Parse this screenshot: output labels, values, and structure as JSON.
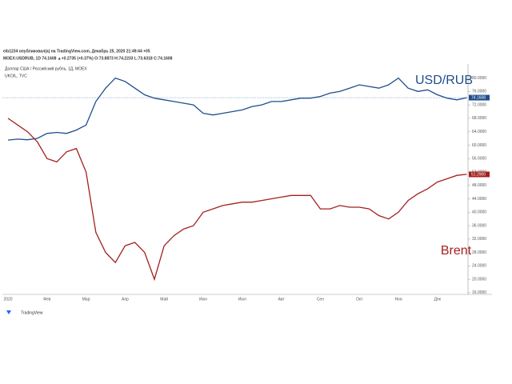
{
  "header": {
    "publisher": "eib1234 опубликовал(а) на TradingView.com, Декабрь 25, 2020 21:49:44 +05",
    "quote": "MOEX:USDRUB, 1D 74.1608 ▲+0.2735 (+0.37%) O:73.8873 H:74.2233 L:73.6318 C:74.1608",
    "symbol": "Доллар США / Российский рубль, 1Д, MOEX",
    "overlay": "UKOIL, TVC"
  },
  "footer": "TradingView",
  "chart_data": {
    "type": "line",
    "categories": [
      "2020",
      null,
      null,
      null,
      "Фев",
      null,
      null,
      null,
      "Мар",
      null,
      null,
      null,
      "Апр",
      null,
      null,
      null,
      "Май",
      null,
      null,
      null,
      "Июн",
      null,
      null,
      null,
      "Июл",
      null,
      null,
      null,
      "Авг",
      null,
      null,
      null,
      "Сен",
      null,
      null,
      null,
      "Окт",
      null,
      null,
      null,
      "Ноя",
      null,
      null,
      null,
      "Дек",
      null,
      null,
      null
    ],
    "series": [
      {
        "name": "USD/RUB",
        "color": "#1f4e8c",
        "values": [
          61.5,
          61.8,
          61.6,
          62,
          63.5,
          63.8,
          63.5,
          64.5,
          66,
          73,
          77,
          80,
          79,
          77,
          75,
          74,
          73.5,
          73,
          72.5,
          72,
          69.5,
          69,
          69.5,
          70,
          70.5,
          71.5,
          72,
          73,
          73,
          73.5,
          74,
          74,
          74.5,
          75.5,
          76,
          77,
          78,
          77.5,
          77,
          78,
          80,
          77,
          76,
          76.5,
          75,
          74,
          73.5,
          74.1608
        ],
        "value_labels": [
          null,
          null,
          null,
          null,
          null,
          null,
          null,
          null,
          null,
          null,
          null,
          null,
          null,
          null,
          null,
          null,
          null,
          null,
          null,
          null,
          null,
          null,
          null,
          null,
          null,
          null,
          null,
          null,
          null,
          null,
          null,
          null,
          null,
          null,
          null,
          null,
          null,
          null,
          null,
          null,
          null,
          null,
          null,
          null,
          null,
          null,
          null,
          "74.1608"
        ]
      },
      {
        "name": "Brent",
        "color": "#a3201e",
        "values": [
          68,
          66,
          64,
          61,
          56,
          55,
          58,
          59,
          52,
          34,
          28,
          25,
          30,
          31,
          28,
          20,
          30,
          33,
          35,
          36,
          40,
          41,
          42,
          42.5,
          43,
          43,
          43.5,
          44,
          44.5,
          45,
          45,
          45,
          41,
          41,
          42,
          41.5,
          41.5,
          41,
          39,
          38,
          40,
          43.5,
          45.5,
          47,
          49,
          50,
          51,
          51.29
        ],
        "value_labels": [
          null,
          null,
          null,
          null,
          null,
          null,
          null,
          null,
          null,
          null,
          null,
          null,
          null,
          null,
          null,
          null,
          null,
          null,
          null,
          null,
          null,
          null,
          null,
          null,
          null,
          null,
          null,
          null,
          null,
          null,
          null,
          null,
          null,
          null,
          null,
          null,
          null,
          null,
          null,
          null,
          null,
          null,
          null,
          null,
          null,
          null,
          null,
          "51.2900"
        ]
      }
    ],
    "ylim": [
      15.5,
      83
    ],
    "yticks": [
      {
        "value": 16,
        "label": "16.0000"
      },
      {
        "value": 20,
        "label": "20.0000"
      },
      {
        "value": 24,
        "label": "24.0000"
      },
      {
        "value": 28,
        "label": "28.0000"
      },
      {
        "value": 32,
        "label": "32.0000"
      },
      {
        "value": 36,
        "label": "36.0000"
      },
      {
        "value": 40,
        "label": "40.0000"
      },
      {
        "value": 44,
        "label": "44.0000"
      },
      {
        "value": 48,
        "label": "48.0000"
      },
      {
        "value": 52,
        "label": "52.0000"
      },
      {
        "value": 56,
        "label": "56.0000"
      },
      {
        "value": 60,
        "label": "60.0000"
      },
      {
        "value": 64,
        "label": "64.0000"
      },
      {
        "value": 68,
        "label": "68.0000"
      },
      {
        "value": 72,
        "label": "72.0000"
      },
      {
        "value": 76,
        "label": "76.0000"
      },
      {
        "value": 80,
        "label": "80.0000"
      }
    ]
  }
}
